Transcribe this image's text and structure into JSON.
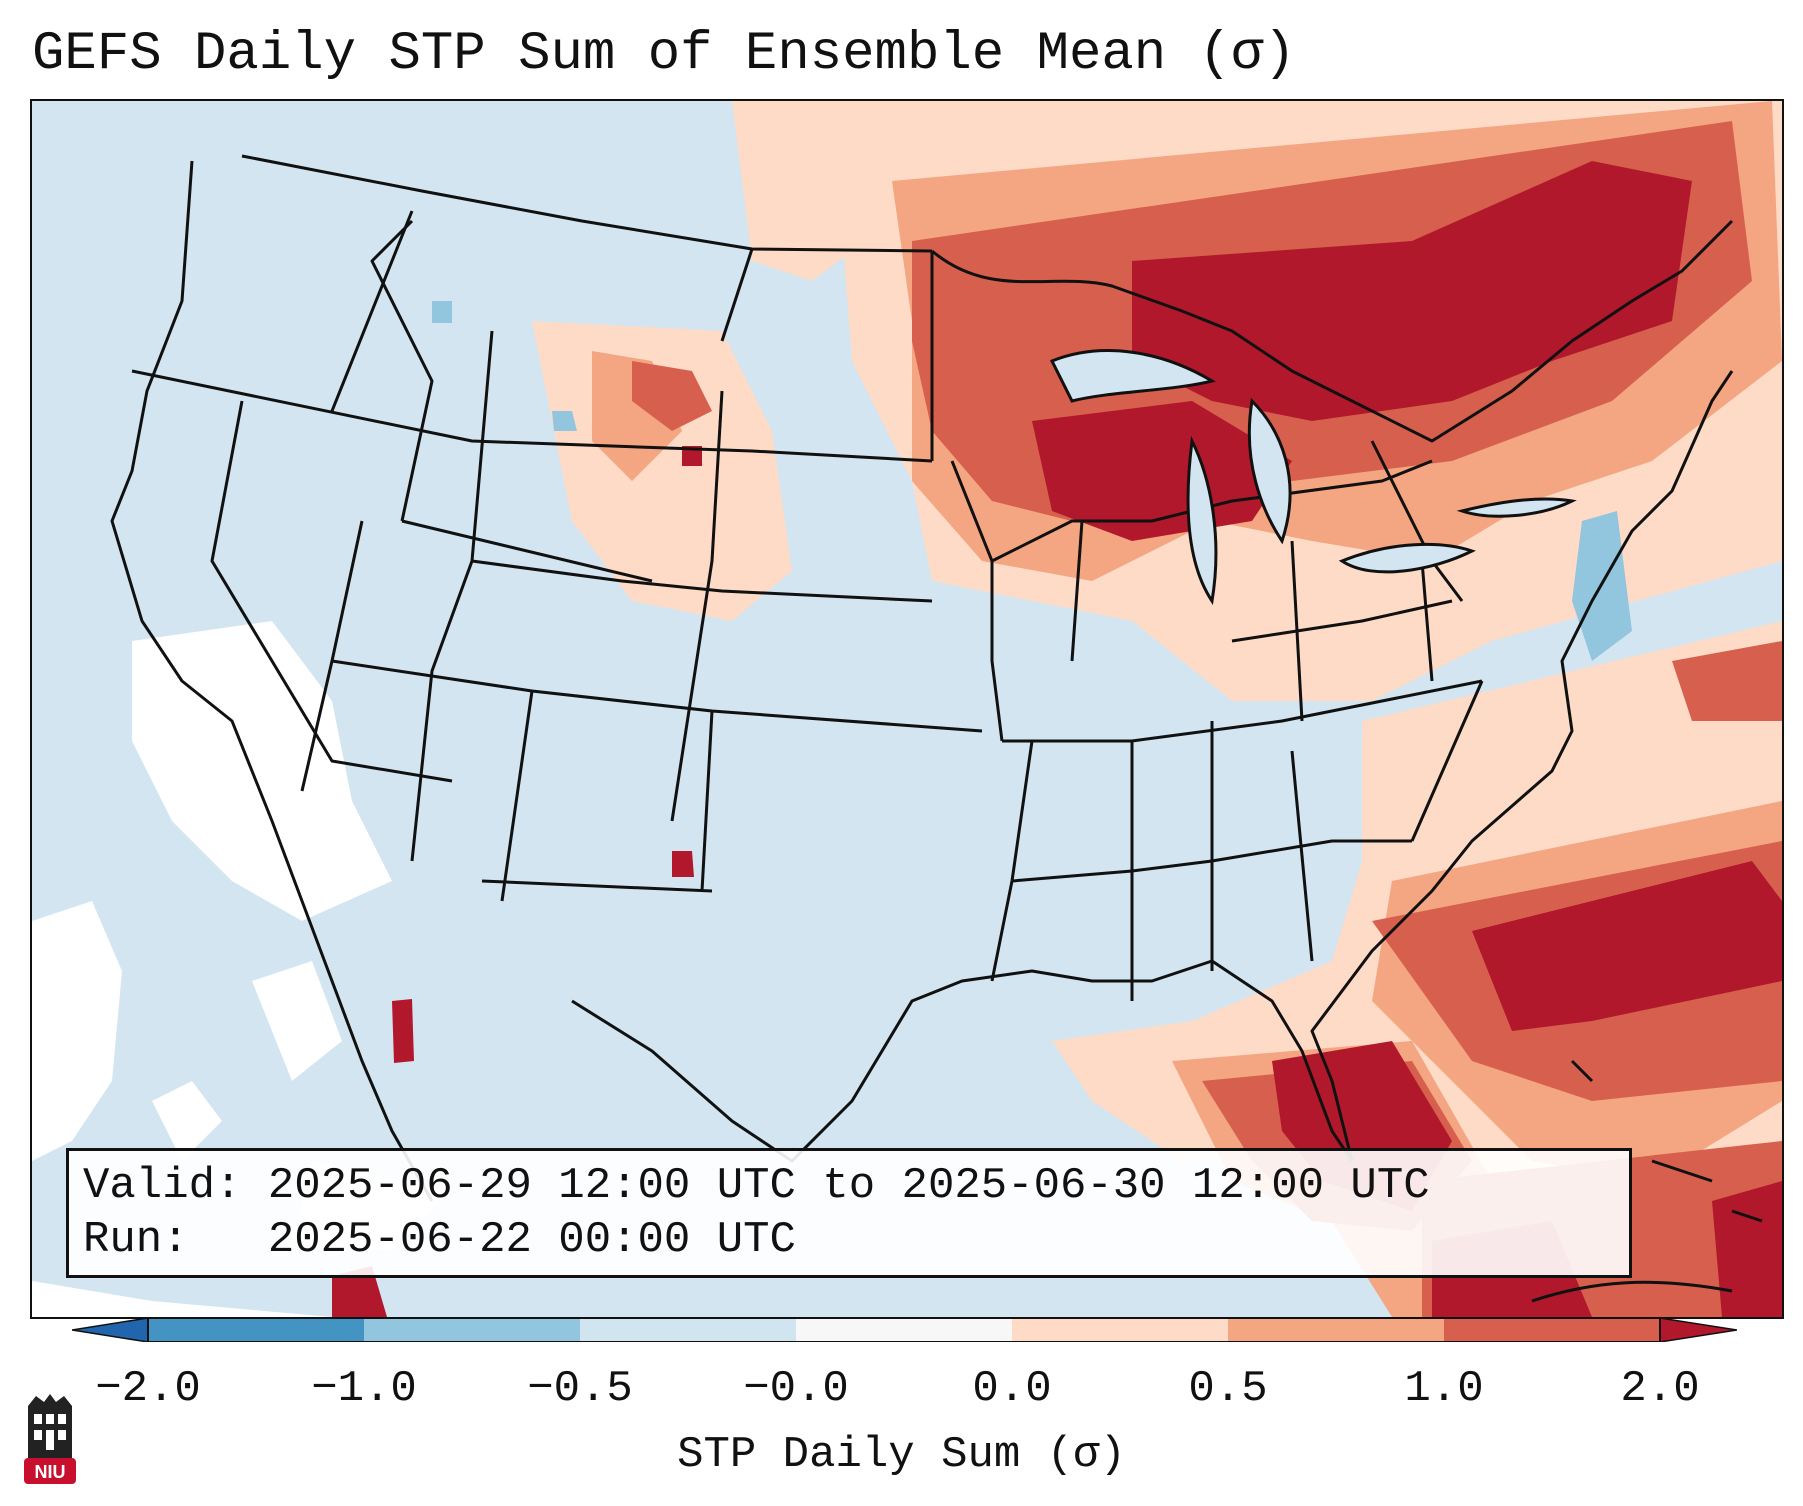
{
  "title": "GEFS Daily STP Sum of Ensemble Mean (σ)",
  "info": {
    "valid_label": "Valid:",
    "valid_text": "2025-06-29 12:00 UTC to 2025-06-30 12:00 UTC",
    "run_label": "Run:",
    "run_text": "2025-06-22 00:00 UTC"
  },
  "colorbar": {
    "label": "STP Daily Sum (σ)",
    "ticks": [
      "−2.0",
      "−1.0",
      "−0.5",
      "−0.0",
      "0.0",
      "0.5",
      "1.0",
      "2.0"
    ],
    "colors": {
      "extend_low": "#2166ac",
      "neg_2_1": "#4393c3",
      "neg_1_05": "#92c5de",
      "neg_05_0": "#d1e5f0",
      "zero": "#f7f7f7",
      "pos_0_05": "#fddbc7",
      "pos_05_1": "#f4a582",
      "pos_1_2": "#d6604d",
      "pos_gt2": "#b2182b"
    }
  },
  "map": {
    "ocean_color": "#d2e5f0",
    "land_color": "#d2e5f0",
    "border_color": "#111111"
  },
  "logo": {
    "text": "NIU",
    "color": "#c8102e"
  }
}
